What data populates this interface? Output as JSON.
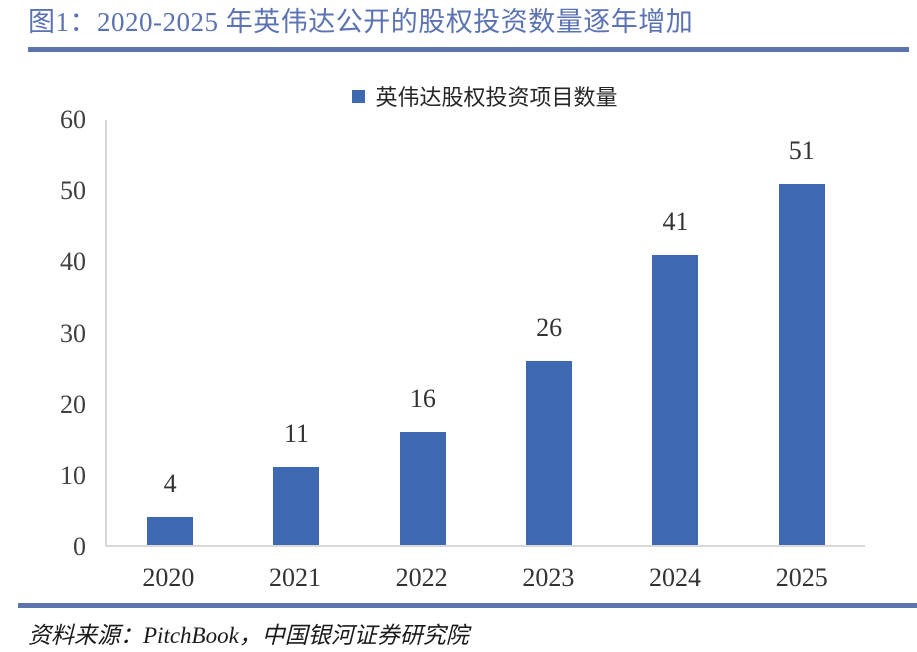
{
  "header": {
    "title": "图1：2020-2025 年英伟达公开的股权投资数量逐年增加"
  },
  "legend": {
    "label": "英伟达股权投资项目数量"
  },
  "footer": {
    "source": "资料来源：PitchBook，中国银河证券研究院"
  },
  "colors": {
    "bar": "#3e68b0",
    "title_text": "#5b73b2",
    "divider": "#5c74ae",
    "axis_line": "#d9d9d9",
    "tick_text": "#404040"
  },
  "chart_data": {
    "type": "bar",
    "title": "2020-2025 年英伟达公开的股权投资数量逐年增加",
    "categories": [
      "2020",
      "2021",
      "2022",
      "2023",
      "2024",
      "2025"
    ],
    "series": [
      {
        "name": "英伟达股权投资项目数量",
        "values": [
          4,
          11,
          16,
          26,
          41,
          51
        ]
      }
    ],
    "xlabel": "",
    "ylabel": "",
    "ylim": [
      0,
      60
    ],
    "yticks": [
      0,
      10,
      20,
      30,
      40,
      50,
      60
    ],
    "grid": false,
    "data_labels": true,
    "legend_position": "top-center",
    "bar_color": "#3e68b0"
  }
}
